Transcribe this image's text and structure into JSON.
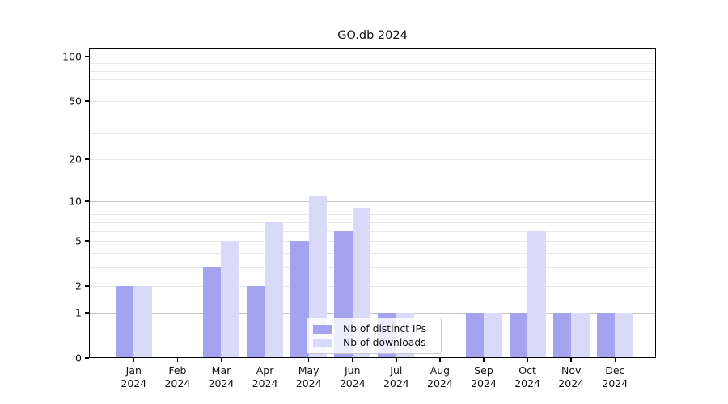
{
  "chart_data": {
    "type": "bar",
    "title": "GO.db 2024",
    "categories": [
      "Jan 2024",
      "Feb 2024",
      "Mar 2024",
      "Apr 2024",
      "May 2024",
      "Jun 2024",
      "Jul 2024",
      "Aug 2024",
      "Sep 2024",
      "Oct 2024",
      "Nov 2024",
      "Dec 2024"
    ],
    "series": [
      {
        "name": "Nb of distinct IPs",
        "color": "#a3a3f0",
        "values": [
          2,
          0,
          3,
          2,
          5,
          6,
          1,
          0,
          1,
          1,
          1,
          1
        ]
      },
      {
        "name": "Nb of downloads",
        "color": "#d9d9f8",
        "values": [
          2,
          0,
          5,
          7,
          11,
          9,
          1,
          0,
          1,
          6,
          1,
          1
        ]
      }
    ],
    "xlabel": "",
    "ylabel": "",
    "yscale": "log1p",
    "ylim": [
      0,
      113
    ],
    "yticks": [
      0,
      1,
      2,
      5,
      10,
      20,
      50,
      100
    ],
    "grid": "on",
    "grid_major_values": [
      1,
      10,
      100
    ],
    "grid_minor_values": [
      2,
      3,
      4,
      5,
      6,
      7,
      8,
      9,
      20,
      30,
      40,
      50,
      60,
      70,
      80,
      90
    ],
    "legend_position": "lower center",
    "colors": {
      "grid_major": "#c4c4c4",
      "grid_minor": "#e9e9e9",
      "spine": "#000000",
      "background": "#ffffff"
    }
  }
}
